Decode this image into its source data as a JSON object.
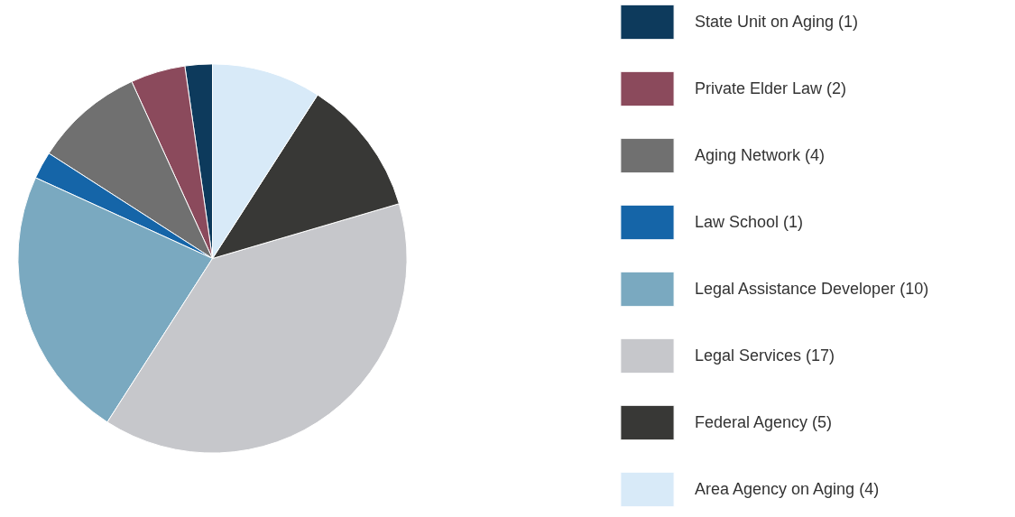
{
  "chart_data": {
    "type": "pie",
    "categories": [
      "State Unit on Aging (1)",
      "Private Elder Law (2)",
      "Aging Network (4)",
      "Law School (1)",
      "Legal Assistance Developer (10)",
      "Legal Services (17)",
      "Federal Agency (5)",
      "Area Agency on Aging (4)"
    ],
    "values": [
      1,
      2,
      4,
      1,
      10,
      17,
      5,
      4
    ],
    "colors": [
      "#0d3a5c",
      "#8b4a5c",
      "#707070",
      "#1565a8",
      "#7aa9c0",
      "#c6c7cb",
      "#383836",
      "#d8eaf8"
    ],
    "legend": "right"
  }
}
